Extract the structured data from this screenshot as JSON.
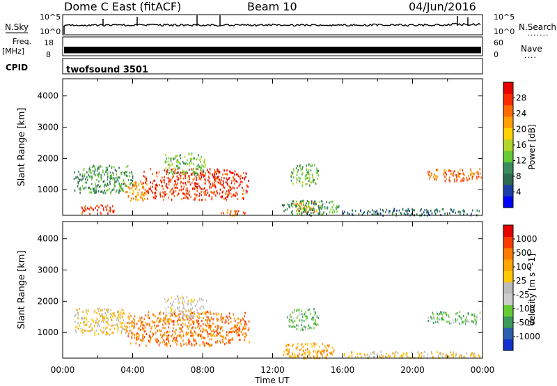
{
  "header": {
    "title": "Dome C East (fitACF)",
    "beam": "Beam 10",
    "date": "04/Jun/2016"
  },
  "nsky_panel": {
    "left_label": "N.Sky",
    "right_label": "N.Search",
    "right_dots": ".......",
    "left_ticks": [
      "10^5",
      "10^0"
    ],
    "right_ticks": [
      "10^5",
      "10^0"
    ]
  },
  "freq_panel": {
    "label_line1": "Freq.",
    "label_line2": "[MHz]",
    "right_label": "Nave",
    "right_dots": "....",
    "left_ticks": [
      "18",
      "8"
    ],
    "right_ticks": [
      "60",
      "0"
    ]
  },
  "cpid_panel": {
    "label": "CPID",
    "program": "twofsound 3501"
  },
  "chart_data": [
    {
      "type": "heatmap",
      "name": "power",
      "ylabel": "Slant Range [km]",
      "ylim": [
        180,
        4550
      ],
      "yticks": [
        1000,
        2000,
        3000,
        4000
      ],
      "xlim": [
        0,
        24
      ],
      "colorbar_label": "Power [dB]",
      "colorbar_ticks": [
        "4",
        "8",
        "12",
        "16",
        "20",
        "24",
        "28"
      ],
      "colors": [
        "#0000ff",
        "#1a3fa8",
        "#2d6a4f",
        "#3b8c5a",
        "#66cc33",
        "#b4d62a",
        "#ffd200",
        "#ffa000",
        "#ff6a00",
        "#ff2a00",
        "#e60000"
      ],
      "regions": [
        {
          "t0": 4.5,
          "t1": 10.6,
          "r0": 700,
          "r1": 1700,
          "level": 9
        },
        {
          "t0": 3.5,
          "t1": 4.8,
          "r0": 650,
          "r1": 1300,
          "level": 7
        },
        {
          "t0": 5.8,
          "t1": 8.2,
          "r0": 1500,
          "r1": 2200,
          "level": 4
        },
        {
          "t0": 0.6,
          "t1": 4.0,
          "r0": 900,
          "r1": 1800,
          "level": 3
        },
        {
          "t0": 1.0,
          "t1": 3.0,
          "r0": 250,
          "r1": 550,
          "level": 9
        },
        {
          "t0": 9.0,
          "t1": 10.5,
          "r0": 200,
          "r1": 380,
          "level": 8
        },
        {
          "t0": 13.2,
          "t1": 14.8,
          "r0": 300,
          "r1": 650,
          "level": 7
        },
        {
          "t0": 12.5,
          "t1": 15.8,
          "r0": 200,
          "r1": 700,
          "level": 3
        },
        {
          "t0": 13.0,
          "t1": 14.6,
          "r0": 1150,
          "r1": 1850,
          "level": 4
        },
        {
          "t0": 20.8,
          "t1": 23.9,
          "r0": 1300,
          "r1": 1700,
          "level": 8
        },
        {
          "t0": 16.0,
          "t1": 23.9,
          "r0": 200,
          "r1": 420,
          "level": 2
        }
      ]
    },
    {
      "type": "heatmap",
      "name": "velocity",
      "ylabel": "Slant Range [km]",
      "ylim": [
        180,
        4550
      ],
      "yticks": [
        1000,
        2000,
        3000,
        4000
      ],
      "xlim": [
        0,
        24
      ],
      "xticks": [
        "00:00",
        "04:00",
        "08:00",
        "12:00",
        "16:00",
        "20:00",
        "00:00"
      ],
      "xlabel": "Time UT",
      "colorbar_label": "Velocity [m s^-1]",
      "colorbar_ticks": [
        "1000",
        "500",
        "100",
        "25",
        "-25",
        "-100",
        "-500",
        "-1000"
      ],
      "colors": [
        "#e60000",
        "#ff3c00",
        "#ff7a00",
        "#ffa500",
        "#ffc800",
        "#bbbbbb",
        "#cccccc",
        "#66cc33",
        "#3a9a5a",
        "#2d5fb0",
        "#1133cc"
      ],
      "regions": [
        {
          "t0": 3.6,
          "t1": 10.7,
          "r0": 600,
          "r1": 1700,
          "level": 2
        },
        {
          "t0": 5.8,
          "t1": 8.2,
          "r0": 1500,
          "r1": 2200,
          "level": 5
        },
        {
          "t0": 0.6,
          "t1": 3.8,
          "r0": 950,
          "r1": 1800,
          "level": 4
        },
        {
          "t0": 12.5,
          "t1": 15.5,
          "r0": 200,
          "r1": 700,
          "level": 3
        },
        {
          "t0": 12.8,
          "t1": 14.6,
          "r0": 1100,
          "r1": 1800,
          "level": 7
        },
        {
          "t0": 20.8,
          "t1": 23.9,
          "r0": 1300,
          "r1": 1700,
          "level": 7
        },
        {
          "t0": 16.0,
          "t1": 23.9,
          "r0": 200,
          "r1": 420,
          "level": 4
        }
      ]
    }
  ]
}
